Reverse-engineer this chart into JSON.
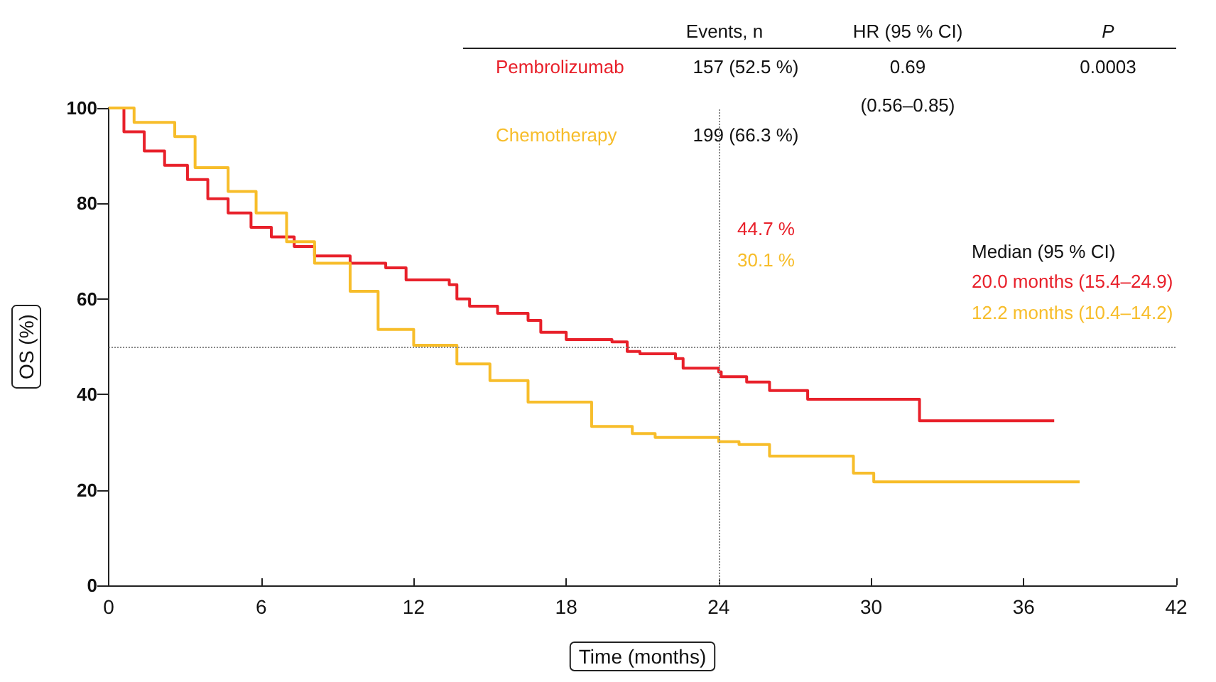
{
  "chart_data": {
    "type": "step",
    "xlabel": "Time (months)",
    "ylabel": "OS (%)",
    "xlim": [
      0,
      42
    ],
    "xticks": [
      0,
      6,
      12,
      18,
      24,
      30,
      36,
      42
    ],
    "ylim": [
      0,
      100
    ],
    "yticks": [
      0,
      20,
      40,
      60,
      80,
      100
    ],
    "grid": false,
    "legend": false,
    "marker": "none",
    "line_style": "solid",
    "series": [
      {
        "name": "Pembrolizumab",
        "color": "#e8202a",
        "x": [
          0,
          0.6,
          1.4,
          2.2,
          3.1,
          3.9,
          4.7,
          5.6,
          6.4,
          7.3,
          8.1,
          9.5,
          10.9,
          11.7,
          13.4,
          13.7,
          14.2,
          15.3,
          16.5,
          17,
          18,
          19.8,
          20.4,
          20.9,
          22.3,
          22.6,
          24,
          24.1,
          25.1,
          26,
          27.5,
          31.9,
          37.2
        ],
        "values": [
          100,
          95,
          91,
          88,
          85,
          81,
          78,
          75,
          73,
          71,
          69,
          67.5,
          66.5,
          64,
          63,
          60,
          58.5,
          57,
          55.5,
          53,
          51.5,
          51,
          49,
          48.5,
          47.5,
          45.5,
          44.7,
          43.7,
          42.6,
          40.8,
          39,
          34.5,
          34.5
        ]
      },
      {
        "name": "Chemotherapy",
        "color": "#f7bd2a",
        "x": [
          0,
          1,
          2.6,
          3.4,
          4.7,
          5.8,
          7,
          8.1,
          9.5,
          10.6,
          12,
          13.7,
          15,
          16.5,
          19,
          20.6,
          21.5,
          24,
          24.8,
          26,
          29.3,
          30.1,
          38.2
        ],
        "values": [
          100,
          97,
          94,
          87.5,
          82.5,
          78,
          72,
          67.5,
          61.6,
          53.6,
          50.3,
          46.4,
          42.9,
          38.4,
          33.3,
          31.8,
          31,
          30.1,
          29.5,
          27.1,
          23.5,
          21.7,
          21.7
        ]
      }
    ],
    "ref_lines": [
      {
        "axis": "y",
        "value": 50,
        "color": "#888888",
        "line_style": "dotted"
      },
      {
        "axis": "x",
        "value": 24,
        "color": "#888888",
        "line_style": "dotted"
      }
    ],
    "annotations": [
      "Events, n",
      "HR (95 % CI)",
      "P",
      "157 (52.5 %)",
      "0.69",
      "0.0003",
      "(0.56–0.85)",
      "199 (66.3 %)",
      "44.7 %",
      "30.1 %",
      "Median (95 % CI)",
      "20.0 months (15.4–24.9)",
      "12.2 months (10.4–14.2)"
    ]
  }
}
